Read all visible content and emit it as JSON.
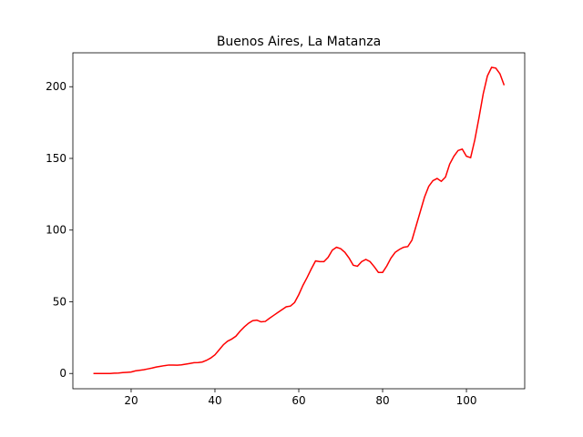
{
  "chart_data": {
    "type": "line",
    "title": "Buenos Aires, La Matanza",
    "x": [
      11,
      12,
      13,
      14,
      15,
      16,
      17,
      18,
      19,
      20,
      21,
      22,
      23,
      24,
      25,
      26,
      27,
      28,
      29,
      30,
      31,
      32,
      33,
      34,
      35,
      36,
      37,
      38,
      39,
      40,
      41,
      42,
      43,
      44,
      45,
      46,
      47,
      48,
      49,
      50,
      51,
      52,
      53,
      54,
      55,
      56,
      57,
      58,
      59,
      60,
      61,
      62,
      63,
      64,
      65,
      66,
      67,
      68,
      69,
      70,
      71,
      72,
      73,
      74,
      75,
      76,
      77,
      78,
      79,
      80,
      81,
      82,
      83,
      84,
      85,
      86,
      87,
      88,
      89,
      90,
      91,
      92,
      93,
      94,
      95,
      96,
      97,
      98,
      99,
      100,
      101,
      102,
      103,
      104,
      105,
      106,
      107,
      108,
      109
    ],
    "series": [
      {
        "color": "#ff0000",
        "values": [
          0,
          0,
          0,
          0,
          0,
          0.2,
          0.3,
          0.6,
          0.8,
          1,
          1.8,
          2.2,
          2.6,
          3.2,
          3.8,
          4.5,
          5,
          5.5,
          5.9,
          5.9,
          5.8,
          6,
          6.5,
          7,
          7.5,
          7.6,
          8,
          9.2,
          10.8,
          13,
          16.5,
          20,
          22.5,
          24,
          26,
          29.5,
          32.5,
          35,
          36.8,
          37.2,
          36,
          36.3,
          38.5,
          40.5,
          42.5,
          44.5,
          46.5,
          47,
          49.5,
          55,
          61.5,
          67,
          73,
          78.5,
          78,
          78,
          81,
          86,
          88,
          87,
          84.5,
          80.5,
          75.5,
          74.8,
          78,
          79.5,
          78,
          74.5,
          70.5,
          70.5,
          75,
          80.5,
          84.5,
          86.5,
          88,
          88.5,
          93,
          103,
          113,
          123,
          130.5,
          134.5,
          136,
          134,
          137,
          146,
          151.5,
          155.5,
          156.5,
          151.5,
          150.5,
          163,
          178.5,
          195,
          207.5,
          213.5,
          213,
          209,
          201
        ]
      }
    ],
    "xlim": [
      6.1,
      113.9
    ],
    "ylim": [
      -10.65,
      223.65
    ],
    "xticks": [
      20,
      40,
      60,
      80,
      100
    ],
    "yticks": [
      0,
      50,
      100,
      150,
      200
    ]
  }
}
